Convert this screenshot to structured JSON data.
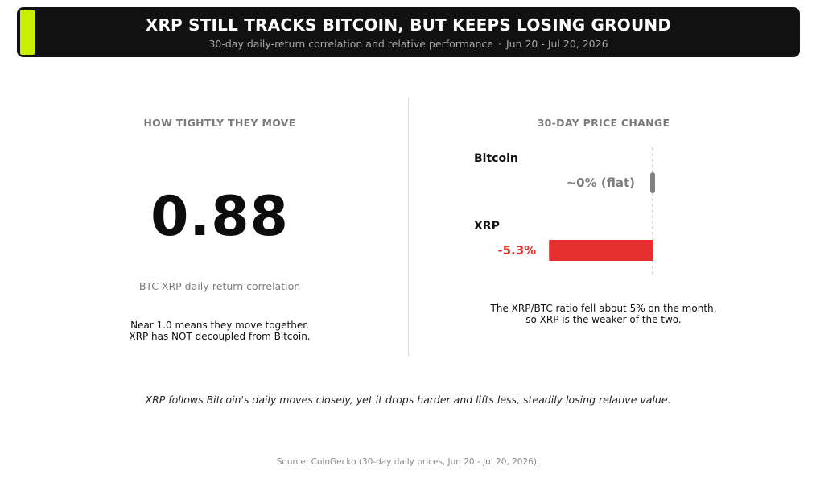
{
  "header": {
    "title": "XRP STILL TRACKS BITCOIN, BUT KEEPS LOSING GROUND",
    "subtitle": "30-day daily-return correlation and relative performance",
    "separator": "·",
    "date_range": "Jun 20 - Jul 20, 2026",
    "accent_color": "#c7f000"
  },
  "left_panel": {
    "heading": "HOW TIGHTLY THEY MOVE",
    "value": "0.88",
    "value_label": "BTC-XRP daily-return correlation",
    "note_line1": "Near 1.0 means they move together.",
    "note_line2": "XRP has NOT decoupled from Bitcoin."
  },
  "right_panel": {
    "heading": "30-DAY PRICE CHANGE",
    "note_line1": "The XRP/BTC ratio fell about 5% on the month,",
    "note_line2": "so XRP is the weaker of the two."
  },
  "chart_data": {
    "type": "bar",
    "orientation": "horizontal",
    "title": "30-DAY PRICE CHANGE",
    "unit": "%",
    "categories": [
      "Bitcoin",
      "XRP"
    ],
    "values": [
      0,
      -5.3
    ],
    "value_labels": [
      "~0% (flat)",
      "-5.3%"
    ],
    "colors": [
      "#808080",
      "#e53030"
    ],
    "label_colors": [
      "#7d7d7d",
      "#e53030"
    ],
    "xlim": [
      -5.3,
      0
    ],
    "zero_line": "dashed",
    "grid": false
  },
  "takeaway": "XRP follows Bitcoin's daily moves closely, yet it drops harder and lifts less, steadily losing relative value.",
  "source": "Source: CoinGecko (30-day daily prices, Jun 20 - Jul 20, 2026)."
}
